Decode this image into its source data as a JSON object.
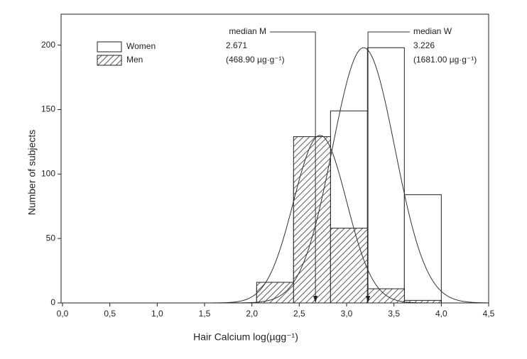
{
  "chart_data": {
    "type": "histogram",
    "xlabel": "Hair Calcium log(µgg⁻¹)",
    "ylabel": "Number of subjects",
    "bins": [
      2.05,
      2.44,
      2.83,
      3.22,
      3.61,
      4.0
    ],
    "series": [
      {
        "name": "Women",
        "color": "#ffffff",
        "values": [
          12,
          100,
          149,
          198,
          84
        ]
      },
      {
        "name": "Men",
        "color": "hatch",
        "values": [
          16,
          129,
          58,
          11,
          2
        ]
      }
    ],
    "curves": [
      {
        "mean": 3.18,
        "sd": 0.33,
        "peak": 198
      },
      {
        "mean": 2.72,
        "sd": 0.28,
        "peak": 130
      }
    ],
    "annotations": [
      {
        "lines": [
          "median M",
          "2.671",
          "(468.90 µg·g⁻¹)"
        ],
        "x": 2.671
      },
      {
        "lines": [
          "median W",
          "3.226",
          "(1681.00 µg·g⁻¹)"
        ],
        "x": 3.226
      }
    ],
    "xlim": [
      0,
      4.5
    ],
    "ylim": [
      0,
      224
    ],
    "xticks": [
      {
        "value": 0,
        "label": "0,0"
      },
      {
        "value": 0.5,
        "label": "0,5"
      },
      {
        "value": 1,
        "label": "1,0"
      },
      {
        "value": 1.5,
        "label": "1,5"
      },
      {
        "value": 2,
        "label": "2,0"
      },
      {
        "value": 2.5,
        "label": "2,5"
      },
      {
        "value": 3,
        "label": "3,0"
      },
      {
        "value": 3.5,
        "label": "3,5"
      },
      {
        "value": 4,
        "label": "4,0"
      },
      {
        "value": 4.5,
        "label": "4,5"
      }
    ],
    "yticks": [
      0,
      50,
      100,
      150,
      200
    ],
    "legend": "upper left"
  }
}
